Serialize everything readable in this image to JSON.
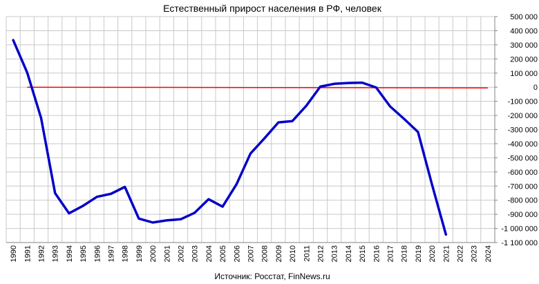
{
  "chart_data": {
    "type": "line",
    "title": "Естественный прирост населения в РФ, человек",
    "source": "Источник: Росстат, FinNews.ru",
    "xlabel": "",
    "ylabel": "",
    "categories": [
      "1990",
      "1991",
      "1992",
      "1993",
      "1994",
      "1995",
      "1996",
      "1997",
      "1998",
      "1999",
      "2000",
      "2001",
      "2002",
      "2003",
      "2004",
      "2005",
      "2006",
      "2007",
      "2008",
      "2009",
      "2010",
      "2011",
      "2012",
      "2013",
      "2014",
      "2015",
      "2016",
      "2017",
      "2018",
      "2019",
      "2020",
      "2021",
      "2022",
      "2023",
      "2024"
    ],
    "ylim": [
      -1100000,
      500000
    ],
    "yticks": [
      500000,
      400000,
      300000,
      200000,
      100000,
      0,
      -100000,
      -200000,
      -300000,
      -400000,
      -500000,
      -600000,
      -700000,
      -800000,
      -900000,
      -1000000,
      -1100000
    ],
    "ytick_labels": [
      "500 000",
      "400 000",
      "300 000",
      "200 000",
      "100 000",
      "0",
      "-100 000",
      "-200 000",
      "-300 000",
      "-400 000",
      "-500 000",
      "-600 000",
      "-700 000",
      "-800 000",
      "-900 000",
      "-1 000 000",
      "-1 100 000"
    ],
    "y_axis_side": "right",
    "grid": true,
    "series": [
      {
        "color": "#0000c8",
        "values": [
          333000,
          104000,
          -219000,
          -750000,
          -893000,
          -840000,
          -776000,
          -755000,
          -706000,
          -930000,
          -958000,
          -943000,
          -935000,
          -889000,
          -793000,
          -846000,
          -687000,
          -470000,
          -362000,
          -249000,
          -240000,
          -131000,
          4000,
          24000,
          30000,
          32000,
          -2000,
          -136000,
          -224000,
          -317000,
          -688000,
          -1043000,
          null,
          null,
          null
        ]
      }
    ],
    "reference_line": {
      "color": "#ff0000",
      "y_start": 0,
      "y_end": -5000,
      "x_start": "1991",
      "x_end": "2024"
    }
  },
  "colors": {
    "grid": "#c8c8c8",
    "axis": "#808080"
  }
}
